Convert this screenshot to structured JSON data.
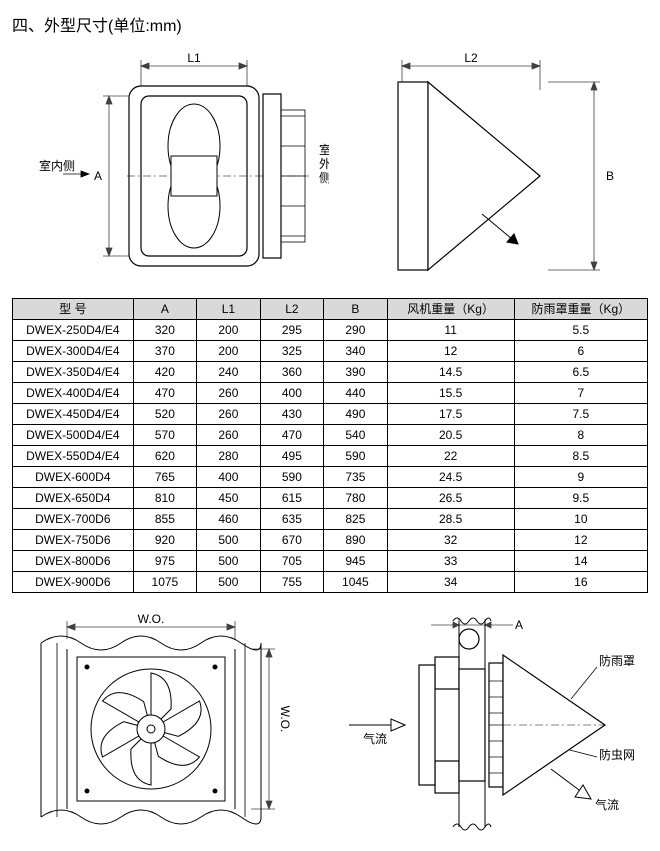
{
  "title": "四、外型尺寸(单位:mm)",
  "labels": {
    "L1": "L1",
    "L2": "L2",
    "A": "A",
    "B": "B",
    "A2": "A",
    "indoor": "室内侧",
    "outdoor": "室外侧",
    "wo": "W.O.",
    "airflow": "气流",
    "rainCover": "防雨罩",
    "insectNet": "防虫网"
  },
  "table": {
    "columns": [
      "型 号",
      "A",
      "L1",
      "L2",
      "B",
      "风机重量（Kg）",
      "防雨罩重量（Kg）"
    ],
    "col_widths": [
      "19%",
      "10%",
      "10%",
      "10%",
      "10%",
      "20%",
      "21%"
    ],
    "rows": [
      [
        "DWEX-250D4/E4",
        "320",
        "200",
        "295",
        "290",
        "11",
        "5.5"
      ],
      [
        "DWEX-300D4/E4",
        "370",
        "200",
        "325",
        "340",
        "12",
        "6"
      ],
      [
        "DWEX-350D4/E4",
        "420",
        "240",
        "360",
        "390",
        "14.5",
        "6.5"
      ],
      [
        "DWEX-400D4/E4",
        "470",
        "260",
        "400",
        "440",
        "15.5",
        "7"
      ],
      [
        "DWEX-450D4/E4",
        "520",
        "260",
        "430",
        "490",
        "17.5",
        "7.5"
      ],
      [
        "DWEX-500D4/E4",
        "570",
        "260",
        "470",
        "540",
        "20.5",
        "8"
      ],
      [
        "DWEX-550D4/E4",
        "620",
        "280",
        "495",
        "590",
        "22",
        "8.5"
      ],
      [
        "DWEX-600D4",
        "765",
        "400",
        "590",
        "735",
        "24.5",
        "9"
      ],
      [
        "DWEX-650D4",
        "810",
        "450",
        "615",
        "780",
        "26.5",
        "9.5"
      ],
      [
        "DWEX-700D6",
        "855",
        "460",
        "635",
        "825",
        "28.5",
        "10"
      ],
      [
        "DWEX-750D6",
        "920",
        "500",
        "670",
        "890",
        "32",
        "12"
      ],
      [
        "DWEX-800D6",
        "975",
        "500",
        "705",
        "945",
        "33",
        "14"
      ],
      [
        "DWEX-900D6",
        "1075",
        "500",
        "755",
        "1045",
        "34",
        "16"
      ]
    ]
  },
  "colors": {
    "stroke": "#000000",
    "fill": "#ffffff",
    "dimStroke": "#404040",
    "header_bg": "#d9d9d9"
  }
}
